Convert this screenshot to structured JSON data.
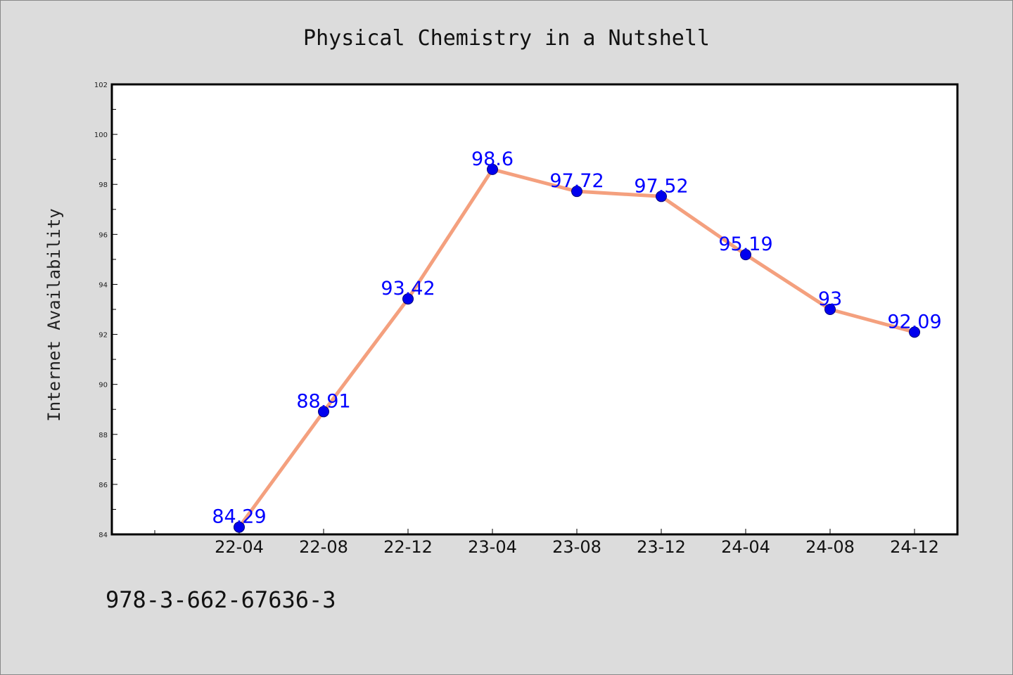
{
  "chart_data": {
    "type": "line",
    "title": "Physical Chemistry in a Nutshell",
    "ylabel": "Internet Availability",
    "xlabel": "",
    "categories": [
      "22-04",
      "22-08",
      "22-12",
      "23-04",
      "23-08",
      "23-12",
      "24-04",
      "24-08",
      "24-12"
    ],
    "series": [
      {
        "values": [
          84.29,
          88.91,
          93.42,
          98.6,
          97.72,
          97.52,
          95.19,
          93,
          92.09
        ]
      }
    ],
    "data_labels": [
      "84.29",
      "88.91",
      "93.42",
      "98.6",
      "97.72",
      "97.52",
      "95.19",
      "93",
      "92.09"
    ],
    "ylim": [
      84,
      102
    ],
    "yticks": [
      84,
      86,
      88,
      90,
      92,
      94,
      96,
      98,
      100,
      102
    ],
    "grid": false,
    "legend": "none",
    "colors": {
      "line": "#f4a07e",
      "marker": "#0000ee",
      "marker_edge": "#00007a",
      "label": "#0000ff"
    }
  },
  "footer_text": "978-3-662-67636-3"
}
